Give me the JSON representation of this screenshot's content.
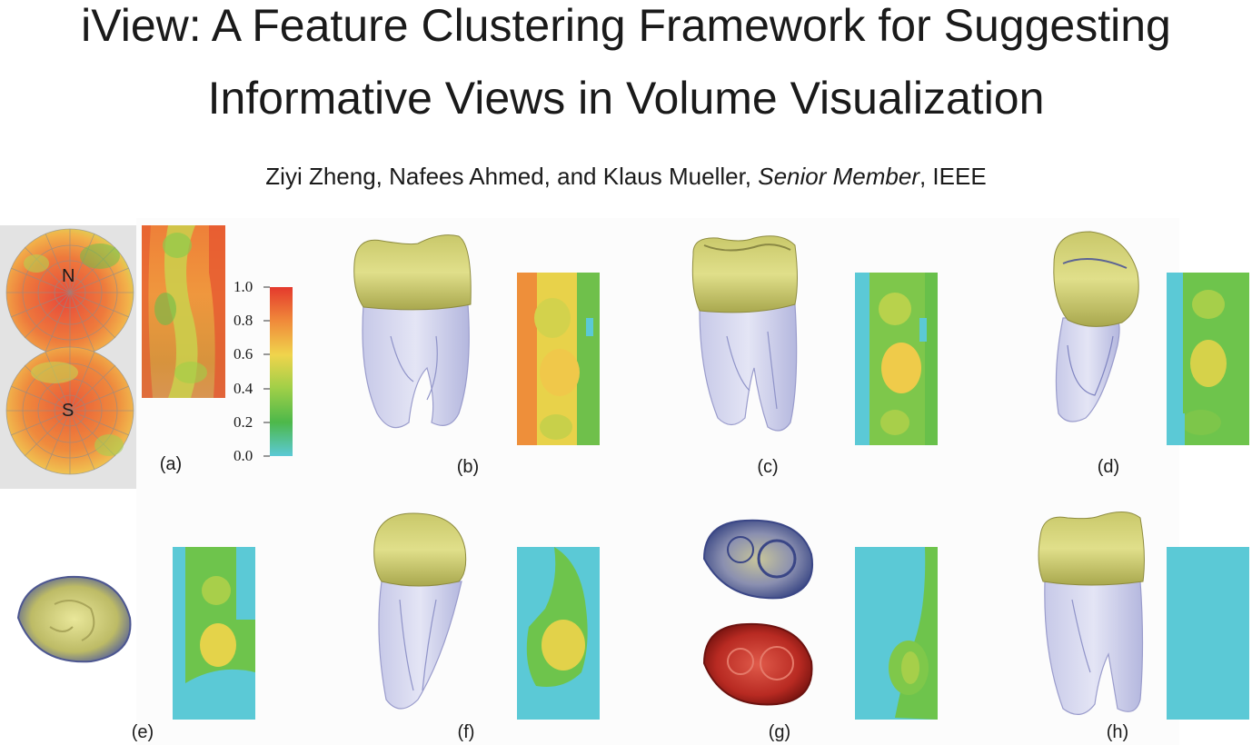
{
  "paper": {
    "title_line1": "iView: A Feature Clustering Framework for Suggesting",
    "title_line2": "Informative Views in Volume Visualization",
    "authors_prefix": "Ziyi Zheng, Nafees Ahmed, and Klaus Mueller, ",
    "authors_role": "Senior Member",
    "authors_suffix": ", IEEE"
  },
  "figure": {
    "sphere_north_label": "N",
    "sphere_south_label": "S",
    "colorbar_ticks": [
      "1.0",
      "0.8",
      "0.6",
      "0.4",
      "0.2",
      "0.0"
    ],
    "subfigure_labels": [
      "(a)",
      "(b)",
      "(c)",
      "(d)",
      "(e)",
      "(f)",
      "(g)",
      "(h)"
    ],
    "colors": {
      "high": "#e4392d",
      "mid": "#f0d44c",
      "low_mid": "#4db84a",
      "low": "#5bc9d6"
    }
  }
}
